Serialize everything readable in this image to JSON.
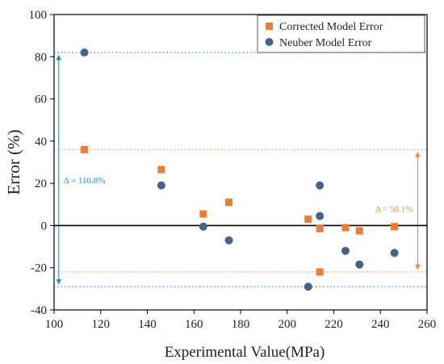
{
  "chart_data": {
    "type": "scatter",
    "xlabel": "Experimental Value(MPa)",
    "ylabel": "Error (%)",
    "xlim": [
      100,
      260
    ],
    "ylim": [
      -40,
      100
    ],
    "x_ticks": [
      100,
      120,
      140,
      160,
      180,
      200,
      220,
      240,
      260
    ],
    "y_ticks": [
      -40,
      -20,
      0,
      20,
      40,
      60,
      80,
      100
    ],
    "legend_position": "top-right",
    "series": [
      {
        "name": "Corrected Model Error",
        "marker": "square",
        "color": "#f07c32",
        "points": [
          {
            "x": 113,
            "y": 36
          },
          {
            "x": 146,
            "y": 26.5
          },
          {
            "x": 164,
            "y": 5.5
          },
          {
            "x": 175,
            "y": 11
          },
          {
            "x": 209,
            "y": 3
          },
          {
            "x": 214,
            "y": -1.5
          },
          {
            "x": 214,
            "y": -22
          },
          {
            "x": 225,
            "y": -1
          },
          {
            "x": 231,
            "y": -2.5
          },
          {
            "x": 246,
            "y": -0.5
          }
        ]
      },
      {
        "name": "Neuber Model Error",
        "marker": "circle",
        "color": "#44638f",
        "points": [
          {
            "x": 113,
            "y": 82
          },
          {
            "x": 146,
            "y": 19
          },
          {
            "x": 164,
            "y": -0.5
          },
          {
            "x": 175,
            "y": -7
          },
          {
            "x": 209,
            "y": -29
          },
          {
            "x": 214,
            "y": 19
          },
          {
            "x": 214,
            "y": 4.5
          },
          {
            "x": 225,
            "y": -12
          },
          {
            "x": 231,
            "y": -18.5
          },
          {
            "x": 246,
            "y": -13
          }
        ]
      }
    ],
    "reference_lines": [
      {
        "y": 82,
        "color": "#3aa0d0"
      },
      {
        "y": -29,
        "color": "#3aa0d0"
      },
      {
        "y": 36,
        "color": "#f5a35c"
      },
      {
        "y": -22,
        "color": "#f5a35c"
      }
    ],
    "annotations": [
      {
        "text": "Δ = 110.8%",
        "color": "#2b8ac0",
        "x_at": 102,
        "y_from": 82,
        "y_to": -29
      },
      {
        "text": "Δ = 58.1%",
        "color": "#f08a3a",
        "x_at": 256,
        "y_from": 36,
        "y_to": -22
      }
    ]
  }
}
